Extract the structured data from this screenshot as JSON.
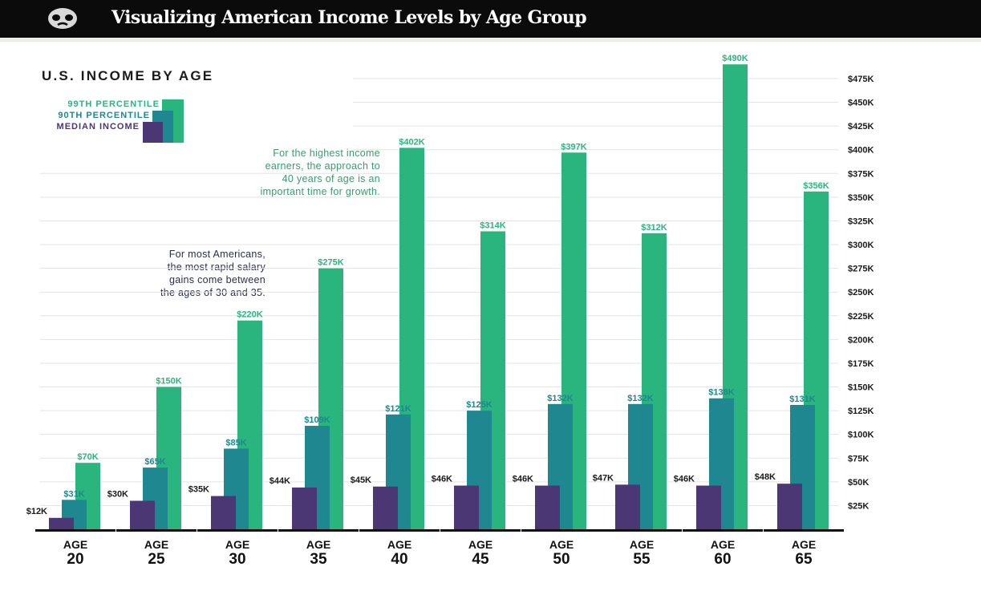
{
  "header": {
    "title": "Visualizing American Income Levels by Age Group",
    "logo_icon": "mask-icon"
  },
  "colors": {
    "p99": "#2bb57e",
    "p90": "#1e878f",
    "median": "#4a3773",
    "annotation_green": "#3d9a6e",
    "annotation_navy": "#2b2d4f"
  },
  "chart_data": {
    "type": "bar",
    "title": "U.S. INCOME BY AGE",
    "x_prefix": "AGE",
    "categories": [
      "20",
      "25",
      "30",
      "35",
      "40",
      "45",
      "50",
      "55",
      "60",
      "65"
    ],
    "series": [
      {
        "name": "MEDIAN INCOME",
        "values": [
          12,
          30,
          35,
          44,
          45,
          46,
          46,
          47,
          46,
          48
        ],
        "labels": [
          "$12K",
          "$30K",
          "$35K",
          "$44K",
          "$45K",
          "$46K",
          "$46K",
          "$47K",
          "$46K",
          "$48K"
        ]
      },
      {
        "name": "90TH PERCENTILE",
        "values": [
          31,
          65,
          85,
          109,
          121,
          125,
          132,
          132,
          138,
          131
        ],
        "labels": [
          "$31K",
          "$65K",
          "$85K",
          "$109K",
          "$121K",
          "$125K",
          "$132K",
          "$132K",
          "$138K",
          "$131K"
        ]
      },
      {
        "name": "99TH PERCENTILE",
        "values": [
          70,
          150,
          220,
          275,
          402,
          314,
          397,
          312,
          490,
          356
        ],
        "labels": [
          "$70K",
          "$150K",
          "$220K",
          "$275K",
          "$402K",
          "$314K",
          "$397K",
          "$312K",
          "$490K",
          "$356K"
        ]
      }
    ],
    "yticks": [
      {
        "value": 25,
        "label": "$25K"
      },
      {
        "value": 50,
        "label": "$50K"
      },
      {
        "value": 75,
        "label": "$75K"
      },
      {
        "value": 100,
        "label": "$100K"
      },
      {
        "value": 125,
        "label": "$125K"
      },
      {
        "value": 150,
        "label": "$150K"
      },
      {
        "value": 175,
        "label": "$175K"
      },
      {
        "value": 200,
        "label": "$200K"
      },
      {
        "value": 225,
        "label": "$225K"
      },
      {
        "value": 250,
        "label": "$250K"
      },
      {
        "value": 275,
        "label": "$275K"
      },
      {
        "value": 300,
        "label": "$300K"
      },
      {
        "value": 325,
        "label": "$325K"
      },
      {
        "value": 350,
        "label": "$350K"
      },
      {
        "value": 375,
        "label": "$375K"
      },
      {
        "value": 400,
        "label": "$400K"
      },
      {
        "value": 425,
        "label": "$425K"
      },
      {
        "value": 450,
        "label": "$450K"
      },
      {
        "value": 475,
        "label": "$475K"
      }
    ],
    "ylim": [
      0,
      500
    ],
    "y_axis_position": "right",
    "grid": true,
    "legend_position": "top-left",
    "annotations": [
      {
        "lines": [
          "For the highest income",
          "earners, the approach to",
          "40 years of age is an",
          "important time for growth."
        ],
        "color": "green"
      },
      {
        "lines": [
          "For most Americans,",
          "the most rapid salary",
          "gains come between",
          "the ages of 30 and 35."
        ],
        "color": "navy"
      }
    ]
  }
}
